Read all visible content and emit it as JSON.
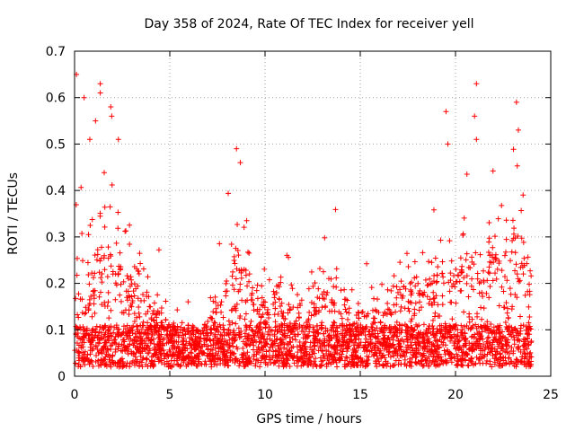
{
  "chart_data": {
    "type": "scatter",
    "title": "Day 358 of 2024, Rate Of TEC Index for receiver yell",
    "xlabel": "GPS time / hours",
    "ylabel": "ROTI / TECUs",
    "xlim": [
      0,
      25
    ],
    "ylim": [
      0,
      0.7
    ],
    "xticks": [
      0,
      5,
      10,
      15,
      20,
      25
    ],
    "yticks": [
      0,
      0.1,
      0.2,
      0.3,
      0.4,
      0.5,
      0.6,
      0.7
    ],
    "xtick_labels": [
      "0",
      "5",
      "10",
      "15",
      "20",
      "25"
    ],
    "ytick_labels": [
      "0",
      "0.1",
      "0.2",
      "0.3",
      "0.4",
      "0.5",
      "0.6",
      "0.7"
    ],
    "grid": true,
    "marker": "+",
    "color": "#ff0000",
    "series": [
      {
        "name": "ROTI",
        "data_span_hours": [
          0,
          24
        ],
        "notable_points": [
          {
            "x": 0.1,
            "y": 0.65
          },
          {
            "x": 0.5,
            "y": 0.6
          },
          {
            "x": 1.35,
            "y": 0.63
          },
          {
            "x": 1.35,
            "y": 0.61
          },
          {
            "x": 1.9,
            "y": 0.58
          },
          {
            "x": 1.95,
            "y": 0.56
          },
          {
            "x": 0.8,
            "y": 0.51
          },
          {
            "x": 1.1,
            "y": 0.55
          },
          {
            "x": 2.3,
            "y": 0.51
          },
          {
            "x": 8.5,
            "y": 0.49
          },
          {
            "x": 8.7,
            "y": 0.46
          },
          {
            "x": 19.5,
            "y": 0.57
          },
          {
            "x": 19.6,
            "y": 0.5
          },
          {
            "x": 21.1,
            "y": 0.63
          },
          {
            "x": 21.0,
            "y": 0.56
          },
          {
            "x": 21.1,
            "y": 0.51
          },
          {
            "x": 23.2,
            "y": 0.59
          },
          {
            "x": 23.3,
            "y": 0.53
          }
        ]
      }
    ]
  }
}
